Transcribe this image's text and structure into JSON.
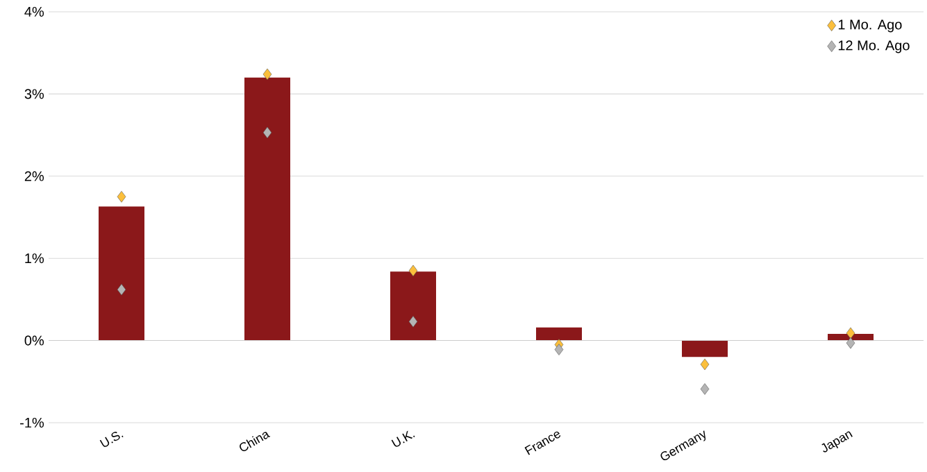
{
  "chart_data": {
    "type": "bar",
    "categories": [
      "U.S.",
      "China",
      "U.K.",
      "France",
      "Germany",
      "Japan"
    ],
    "series": [
      {
        "color": "#8b181a",
        "values": [
          1.63,
          3.2,
          0.84,
          0.16,
          -0.2,
          0.08
        ]
      },
      {
        "name": "1 Mo. Ago",
        "type": "scatter",
        "color": "#fbbf3c",
        "values": [
          1.75,
          3.24,
          0.85,
          -0.05,
          -0.29,
          0.09
        ]
      },
      {
        "name": "12 Mo. Ago",
        "type": "scatter",
        "color": "#b4b4b4",
        "values": [
          0.62,
          2.53,
          0.23,
          -0.11,
          -0.59,
          -0.03
        ]
      }
    ],
    "ylim": [
      -1,
      4
    ],
    "yticks": [
      {
        "value": -1,
        "label": "-1%"
      },
      {
        "value": 0,
        "label": "0%"
      },
      {
        "value": 1,
        "label": "1%"
      },
      {
        "value": 2,
        "label": "2%"
      },
      {
        "value": 3,
        "label": "3%"
      },
      {
        "value": 4,
        "label": "4%"
      }
    ],
    "grid": "y",
    "legend": "top right",
    "marker": "diamond"
  }
}
